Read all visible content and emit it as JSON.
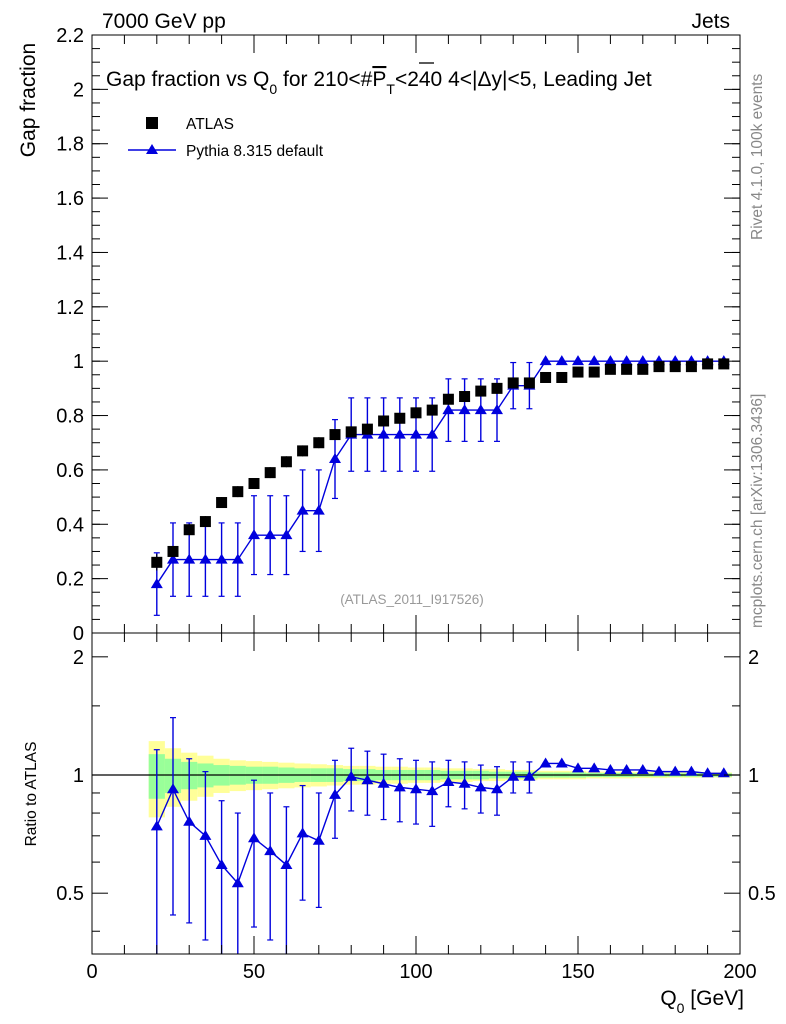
{
  "header": {
    "left": "7000 GeV pp",
    "right": "Jets",
    "title_parts": {
      "prefix": "Gap fraction vs Q",
      "q_sub": "0",
      "mid": " for 210<#",
      "pt_letter": "P",
      "pt_sub": "T",
      "suffix": "<240  4<|Δy|<5, Leading Jet"
    }
  },
  "side_labels": {
    "top": "Rivet 4.1.0,  100k events",
    "bottom": "mcplots.cern.ch [arXiv:1306.3436]"
  },
  "watermark": "(ATLAS_2011_I917526)",
  "legend": {
    "data_label": "ATLAS",
    "mc_label": "Pythia 8.315 default"
  },
  "colors": {
    "data": "#000000",
    "mc": "#0000dd",
    "band_inner": "#99ff99",
    "band_outer": "#ffff99",
    "side_text": "#888888"
  },
  "axes": {
    "top_ylabel": "Gap fraction",
    "bottom_ylabel": "Ratio to ATLAS",
    "xlabel_main": "Q",
    "xlabel_sub": "0",
    "xlabel_unit": " [GeV]",
    "top_yticks": [
      "0",
      "0.2",
      "0.4",
      "0.6",
      "0.8",
      "1",
      "1.2",
      "1.4",
      "1.6",
      "1.8",
      "2",
      "2.2"
    ],
    "bottom_yticks_left": [
      "0.5",
      "1",
      "2"
    ],
    "bottom_yticks_right": [
      "0.5",
      "1",
      "2"
    ],
    "xticks": [
      "0",
      "50",
      "100",
      "150",
      "200"
    ]
  },
  "chart_data": {
    "type": "scatter",
    "title": "Gap fraction vs Q0 for 210<#PT<240  4<|Δy|<5, Leading Jet",
    "xlabel": "Q0 [GeV]",
    "ylabel": "Gap fraction",
    "xlim": [
      0,
      200
    ],
    "ylim": [
      0,
      2.2
    ],
    "ratio_ylim": [
      0.35,
      2.3
    ],
    "x": [
      20,
      25,
      30,
      35,
      40,
      45,
      50,
      55,
      60,
      65,
      70,
      75,
      80,
      85,
      90,
      95,
      100,
      105,
      110,
      115,
      120,
      125,
      130,
      135,
      140,
      145,
      150,
      155,
      160,
      165,
      170,
      175,
      180,
      185,
      190,
      195
    ],
    "series": [
      {
        "name": "ATLAS",
        "marker": "square",
        "values": [
          0.26,
          0.3,
          0.38,
          0.41,
          0.48,
          0.52,
          0.55,
          0.59,
          0.63,
          0.67,
          0.7,
          0.73,
          0.74,
          0.75,
          0.78,
          0.79,
          0.81,
          0.82,
          0.86,
          0.87,
          0.89,
          0.9,
          0.92,
          0.92,
          0.94,
          0.94,
          0.96,
          0.96,
          0.97,
          0.97,
          0.97,
          0.98,
          0.98,
          0.98,
          0.99,
          0.99
        ],
        "errors": [
          0.03,
          0.02,
          0.02,
          0.02,
          0.02,
          0.02,
          0.02,
          0.02,
          0.02,
          0.02,
          0.02,
          0.02,
          0.02,
          0.02,
          0.02,
          0.02,
          0.02,
          0.02,
          0.02,
          0.02,
          0.02,
          0.02,
          0.02,
          0.02,
          0.01,
          0.01,
          0.01,
          0.01,
          0.01,
          0.01,
          0.01,
          0.01,
          0.01,
          0.01,
          0.01,
          0.01
        ]
      },
      {
        "name": "Pythia 8.315 default",
        "marker": "triangle",
        "values": [
          0.18,
          0.27,
          0.27,
          0.27,
          0.27,
          0.27,
          0.36,
          0.36,
          0.36,
          0.45,
          0.45,
          0.64,
          0.73,
          0.73,
          0.73,
          0.73,
          0.73,
          0.73,
          0.82,
          0.82,
          0.82,
          0.82,
          0.91,
          0.91,
          1.0,
          1.0,
          1.0,
          1.0,
          1.0,
          1.0,
          1.0,
          1.0,
          1.0,
          1.0,
          1.0,
          1.0
        ],
        "errors": [
          0.115,
          0.135,
          0.135,
          0.135,
          0.135,
          0.135,
          0.145,
          0.145,
          0.145,
          0.15,
          0.15,
          0.145,
          0.135,
          0.135,
          0.135,
          0.135,
          0.135,
          0.135,
          0.115,
          0.115,
          0.115,
          0.115,
          0.085,
          0.085,
          0.0,
          0.0,
          0.0,
          0.0,
          0.0,
          0.0,
          0.0,
          0.0,
          0.0,
          0.0,
          0.0,
          0.0
        ]
      }
    ],
    "ratio": {
      "ylabel": "Ratio to ATLAS",
      "values": [
        0.74,
        0.92,
        0.76,
        0.7,
        0.59,
        0.53,
        0.69,
        0.64,
        0.59,
        0.71,
        0.68,
        0.89,
        0.99,
        0.97,
        0.95,
        0.93,
        0.92,
        0.91,
        0.96,
        0.95,
        0.93,
        0.92,
        0.99,
        0.99,
        1.07,
        1.07,
        1.04,
        1.04,
        1.03,
        1.03,
        1.03,
        1.02,
        1.02,
        1.02,
        1.01,
        1.01
      ],
      "errors": [
        0.42,
        0.48,
        0.34,
        0.32,
        0.27,
        0.27,
        0.28,
        0.26,
        0.24,
        0.23,
        0.22,
        0.2,
        0.18,
        0.18,
        0.18,
        0.17,
        0.17,
        0.17,
        0.13,
        0.13,
        0.13,
        0.13,
        0.09,
        0.09,
        0.0,
        0.0,
        0.0,
        0.0,
        0.0,
        0.0,
        0.0,
        0.0,
        0.0,
        0.0,
        0.0,
        0.0
      ],
      "band_inner": [
        0.13,
        0.1,
        0.08,
        0.07,
        0.06,
        0.055,
        0.05,
        0.05,
        0.045,
        0.04,
        0.04,
        0.04,
        0.035,
        0.035,
        0.03,
        0.03,
        0.03,
        0.03,
        0.025,
        0.025,
        0.025,
        0.02,
        0.02,
        0.02,
        0.015,
        0.015,
        0.015,
        0.012,
        0.012,
        0.012,
        0.01,
        0.01,
        0.01,
        0.01,
        0.01,
        0.01
      ],
      "band_outer": [
        0.22,
        0.17,
        0.14,
        0.12,
        0.1,
        0.09,
        0.085,
        0.08,
        0.075,
        0.07,
        0.065,
        0.06,
        0.055,
        0.055,
        0.05,
        0.05,
        0.045,
        0.045,
        0.04,
        0.04,
        0.035,
        0.035,
        0.03,
        0.03,
        0.025,
        0.025,
        0.025,
        0.02,
        0.02,
        0.02,
        0.018,
        0.018,
        0.016,
        0.016,
        0.015,
        0.015
      ]
    }
  }
}
